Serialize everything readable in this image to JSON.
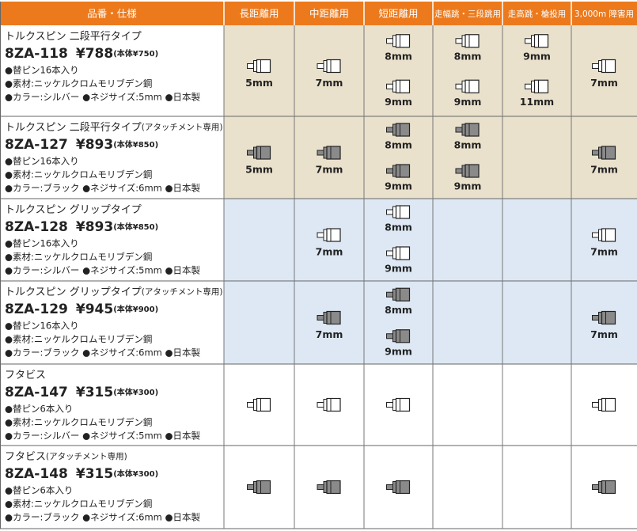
{
  "header": {
    "columns": [
      "品番・仕様",
      "長距離用",
      "中距離用",
      "短距離用",
      "走幅跳・三段跳用",
      "走高跳・槍投用",
      "3,000m 障害用"
    ]
  },
  "table": {
    "rows": [
      {
        "name": "トルクスピン 二段平行タイプ",
        "code": "8ZA-118",
        "price": "¥788",
        "base_price": "(本体¥750)",
        "specs": [
          "●替ピン16本入り",
          "●素材:ニッケルクロムモリブデン鋼",
          "●カラー:シルバー ●ネジサイズ:5mm ●日本製"
        ],
        "background": "#e9e1cc",
        "icon": "#ffffff",
        "cells": [
          [
            "5mm"
          ],
          [
            "7mm"
          ],
          [
            "8mm",
            "9mm"
          ],
          [
            "8mm",
            "9mm"
          ],
          [
            "9mm",
            "11mm"
          ],
          [
            "7mm"
          ]
        ]
      },
      {
        "name": "トルクスピン 二段平行タイプ",
        "note": "(アタッチメント専用)",
        "code": "8ZA-127",
        "price": "¥893",
        "base_price": "(本体¥850)",
        "specs": [
          "●替ピン16本入り",
          "●素材:ニッケルクロムモリブデン鋼",
          "●カラー:ブラック ●ネジサイズ:6mm ●日本製"
        ],
        "background": "#e9e1cc",
        "icon": "#8a8a8a",
        "cells": [
          [
            "5mm"
          ],
          [
            "7mm"
          ],
          [
            "8mm",
            "9mm"
          ],
          [
            "8mm",
            "9mm"
          ],
          [],
          [
            "7mm"
          ]
        ]
      },
      {
        "name": "トルクスピン グリップタイプ",
        "code": "8ZA-128",
        "price": "¥893",
        "base_price": "(本体¥850)",
        "specs": [
          "●替ピン16本入り",
          "●素材:ニッケルクロムモリブデン鋼",
          "●カラー:シルバー ●ネジサイズ:5mm ●日本製"
        ],
        "background": "#dde8f4",
        "icon": "#ffffff",
        "cells": [
          [],
          [
            "7mm"
          ],
          [
            "8mm",
            "9mm"
          ],
          [],
          [],
          [
            "7mm"
          ]
        ]
      },
      {
        "name": "トルクスピン グリップタイプ",
        "note": "(アタッチメント専用)",
        "code": "8ZA-129",
        "price": "¥945",
        "base_price": "(本体¥900)",
        "specs": [
          "●替ピン16本入り",
          "●素材:ニッケルクロムモリブデン鋼",
          "●カラー:ブラック ●ネジサイズ:6mm ●日本製"
        ],
        "background": "#dde8f4",
        "icon": "#8a8a8a",
        "cells": [
          [],
          [
            "7mm"
          ],
          [
            "8mm",
            "9mm"
          ],
          [],
          [],
          [
            "7mm"
          ]
        ]
      },
      {
        "name": "フタビス",
        "code": "8ZA-147",
        "price": "¥315",
        "base_price": "(本体¥300)",
        "specs": [
          "●替ピン6本入り",
          "●素材:ニッケルクロムモリブデン鋼",
          "●カラー:シルバー ●ネジサイズ:5mm ●日本製"
        ],
        "background": "#ffffff",
        "icon": "#ffffff",
        "cells": [
          true,
          true,
          true,
          false,
          false,
          true
        ]
      },
      {
        "name": "フタビス",
        "note": "(アタッチメント専用)",
        "code": "8ZA-148",
        "price": "¥315",
        "base_price": "(本体¥300)",
        "specs": [
          "●替ピン6本入り",
          "●素材:ニッケルクロムモリブデン鋼",
          "●カラー:ブラック ●ネジサイズ:6mm ●日本製"
        ],
        "background": "#ffffff",
        "icon": "#8a8a8a",
        "cells": [
          true,
          true,
          true,
          false,
          false,
          true
        ]
      }
    ]
  }
}
